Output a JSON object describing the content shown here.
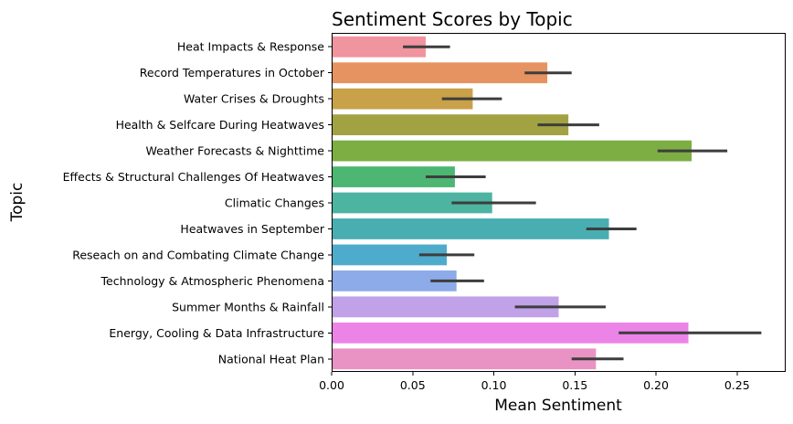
{
  "chart_data": {
    "type": "bar",
    "orientation": "horizontal",
    "title": "Sentiment Scores by Topic",
    "xlabel": "Mean Sentiment",
    "ylabel": "Topic",
    "xlim": [
      0,
      0.28
    ],
    "xticks": [
      0.0,
      0.05,
      0.1,
      0.15,
      0.2,
      0.25
    ],
    "xtick_labels": [
      "0.00",
      "0.05",
      "0.10",
      "0.15",
      "0.20",
      "0.25"
    ],
    "grid": false,
    "categories": [
      "Heat Impacts & Response",
      "Record Temperatures in October",
      "Water Crises & Droughts",
      "Health & Selfcare During Heatwaves",
      "Weather Forecasts & Nighttime",
      "Effects & Structural Challenges Of Heatwaves",
      "Climatic Changes",
      "Heatwaves in September",
      "Reseach on and Combating Climate Change",
      "Technology & Atmospheric Phenomena",
      "Summer Months & Rainfall",
      "Energy, Cooling & Data Infrastructure",
      "National Heat Plan"
    ],
    "values": [
      0.058,
      0.133,
      0.087,
      0.146,
      0.222,
      0.076,
      0.099,
      0.171,
      0.071,
      0.077,
      0.14,
      0.22,
      0.163
    ],
    "error_low": [
      0.044,
      0.119,
      0.068,
      0.127,
      0.201,
      0.058,
      0.074,
      0.157,
      0.054,
      0.061,
      0.113,
      0.177,
      0.148
    ],
    "error_high": [
      0.073,
      0.148,
      0.105,
      0.165,
      0.244,
      0.095,
      0.126,
      0.188,
      0.088,
      0.094,
      0.169,
      0.265,
      0.18
    ],
    "colors": [
      "#f0949f",
      "#e69361",
      "#c9a149",
      "#a2a243",
      "#7cae44",
      "#4cb672",
      "#4cb4a0",
      "#49aeb2",
      "#4fabcb",
      "#8dabe8",
      "#c1a1e8",
      "#ec84e8",
      "#e993c4"
    ]
  }
}
